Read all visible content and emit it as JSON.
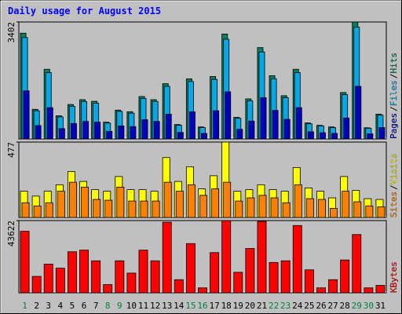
{
  "chart_data": [
    {
      "type": "bar",
      "title": "Daily usage for August 2015",
      "legend_separator": "/",
      "ylim": [
        0,
        3402
      ],
      "yticks": [
        3402
      ],
      "series": [
        {
          "name": "Hits",
          "color": "#00805c",
          "values": [
            3076,
            862,
            2027,
            676,
            1002,
            1142,
            1095,
            489,
            839,
            792,
            1235,
            1142,
            1608,
            419,
            1748,
            350,
            1817,
            3052,
            629,
            1165,
            2656,
            1841,
            1258,
            2027,
            466,
            396,
            350,
            1351,
            3402,
            326,
            722
          ]
        },
        {
          "name": "Files",
          "color": "#00a8e8",
          "values": [
            2950,
            820,
            1930,
            640,
            950,
            1090,
            1040,
            460,
            800,
            750,
            1180,
            1090,
            1530,
            400,
            1670,
            330,
            1730,
            2900,
            600,
            1110,
            2530,
            1750,
            1200,
            1930,
            440,
            380,
            330,
            1290,
            3250,
            310,
            690
          ]
        },
        {
          "name": "Pages",
          "color": "#0000c0",
          "values": [
            1400,
            390,
            910,
            300,
            450,
            510,
            490,
            220,
            380,
            360,
            560,
            510,
            720,
            190,
            790,
            160,
            820,
            1370,
            280,
            520,
            1200,
            830,
            570,
            910,
            210,
            180,
            160,
            610,
            1530,
            150,
            330
          ]
        }
      ]
    },
    {
      "type": "bar",
      "ylim": [
        0,
        477
      ],
      "yticks": [
        477
      ],
      "legend_separator": "/",
      "series": [
        {
          "name": "Visits",
          "color": "#ffff00",
          "values": [
            166,
            135,
            166,
            207,
            290,
            228,
            176,
            166,
            259,
            176,
            176,
            166,
            379,
            228,
            321,
            181,
            264,
            477,
            166,
            176,
            207,
            176,
            166,
            316,
            187,
            166,
            124,
            259,
            171,
            119,
            114
          ]
        },
        {
          "name": "Sites",
          "color": "#ff8000",
          "values": [
            93,
            73,
            93,
            166,
            223,
            192,
            114,
            109,
            192,
            104,
            104,
            104,
            223,
            166,
            207,
            140,
            181,
            223,
            104,
            124,
            140,
            124,
            93,
            207,
            119,
            114,
            57,
            166,
            99,
            73,
            67
          ]
        }
      ]
    },
    {
      "type": "bar",
      "ylim": [
        0,
        43622
      ],
      "yticks": [
        43622
      ],
      "categories": [
        "1",
        "2",
        "3",
        "4",
        "5",
        "6",
        "7",
        "8",
        "9",
        "10",
        "11",
        "12",
        "13",
        "14",
        "15",
        "16",
        "17",
        "18",
        "19",
        "20",
        "21",
        "22",
        "23",
        "24",
        "25",
        "26",
        "27",
        "28",
        "29",
        "30",
        "31"
      ],
      "category_label_colors": [
        "#008040",
        "#000000",
        "#000000",
        "#000000",
        "#000000",
        "#000000",
        "#000000",
        "#008040",
        "#008040",
        "#000000",
        "#000000",
        "#000000",
        "#000000",
        "#000000",
        "#008040",
        "#008040",
        "#000000",
        "#000000",
        "#000000",
        "#000000",
        "#000000",
        "#008040",
        "#008040",
        "#000000",
        "#000000",
        "#000000",
        "#000000",
        "#000000",
        "#008040",
        "#008040",
        "#000000"
      ],
      "series": [
        {
          "name": "KBytes",
          "color": "#ff0000",
          "values": [
            37178,
            9914,
            17350,
            14872,
            24785,
            25777,
            19333,
            4957,
            19333,
            11897,
            25777,
            19333,
            42631,
            7931,
            29742,
            2974,
            24290,
            43622,
            12393,
            26768,
            43126,
            18342,
            19333,
            40648,
            13881,
            2974,
            7931,
            19829,
            35195,
            2974,
            4461
          ]
        }
      ]
    }
  ]
}
